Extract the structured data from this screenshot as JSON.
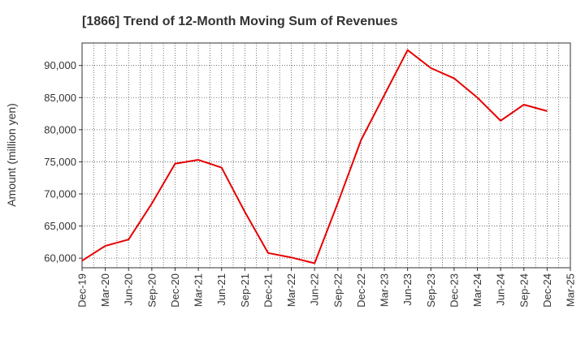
{
  "chart_data": {
    "type": "line",
    "title": "[1866]  Trend of 12-Month Moving Sum of Revenues",
    "xlabel": "",
    "ylabel": "Amount (million yen)",
    "ylim": [
      58500,
      93500
    ],
    "yticks": [
      60000,
      65000,
      70000,
      75000,
      80000,
      85000,
      90000
    ],
    "ytick_labels": [
      "60,000",
      "65,000",
      "70,000",
      "75,000",
      "80,000",
      "85,000",
      "90,000"
    ],
    "categories": [
      "Dec-19",
      "Mar-20",
      "Jun-20",
      "Sep-20",
      "Dec-20",
      "Mar-21",
      "Jun-21",
      "Sep-21",
      "Dec-21",
      "Mar-22",
      "Jun-22",
      "Sep-22",
      "Dec-22",
      "Mar-23",
      "Jun-23",
      "Sep-23",
      "Dec-23",
      "Mar-24",
      "Jun-24",
      "Sep-24",
      "Dec-24",
      "Mar-25"
    ],
    "grid": true,
    "series": [
      {
        "color": "#e60000",
        "values": [
          59600,
          61900,
          62900,
          68500,
          74700,
          75300,
          74100,
          67200,
          60800,
          60100,
          59200,
          68600,
          78400,
          85400,
          92400,
          89600,
          88000,
          85000,
          81400,
          83900,
          82900,
          null
        ]
      }
    ]
  }
}
